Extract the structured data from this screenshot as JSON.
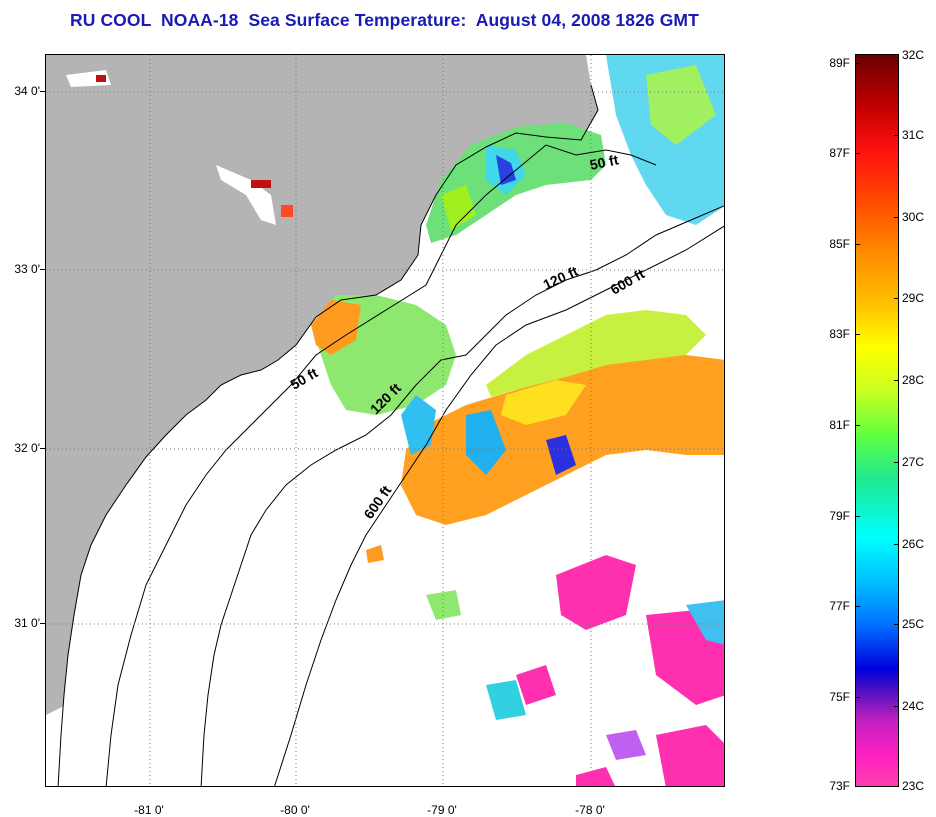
{
  "title": "RU COOL  NOAA-18  Sea Surface Temperature:  August 04, 2008 1826 GMT",
  "latitude_labels": [
    "34 0'",
    "33 0'",
    "32 0'",
    "31 0'"
  ],
  "longitude_labels": [
    "-81 0'",
    "-80 0'",
    "-79 0'",
    "-78 0'"
  ],
  "contour_labels": [
    "50 ft",
    "120 ft",
    "600 ft",
    "50 ft",
    "120 ft",
    "600 ft"
  ],
  "colorbar": {
    "fahrenheit": [
      "89F",
      "87F",
      "85F",
      "83F",
      "81F",
      "79F",
      "77F",
      "75F",
      "73F"
    ],
    "celsius": [
      "32C",
      "31C",
      "30C",
      "29C",
      "28C",
      "27C",
      "26C",
      "25C",
      "24C",
      "23C"
    ]
  },
  "colors": {
    "land": "#b4b4b4",
    "title": "#1a1ab4",
    "no_data": "#ffffff"
  }
}
